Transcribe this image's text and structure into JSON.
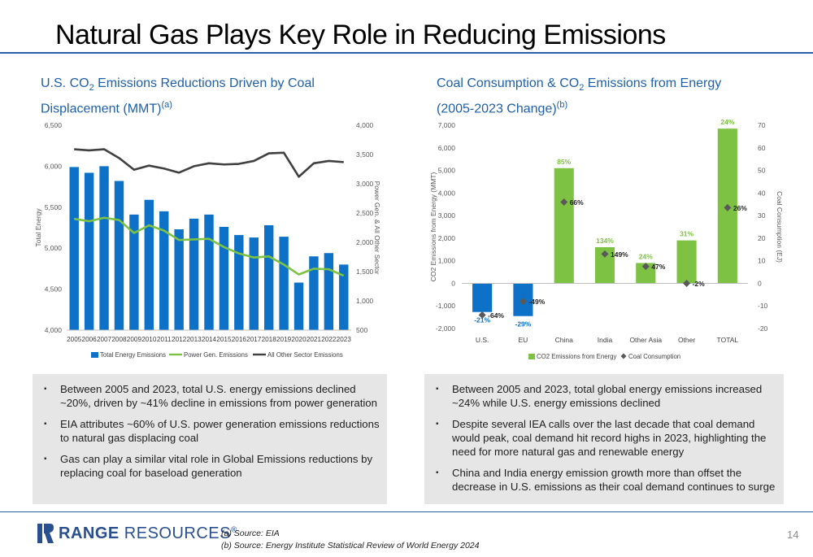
{
  "page": {
    "title": "Natural Gas Plays Key Role in Reducing Emissions",
    "page_number": "14"
  },
  "left_chart_heading": {
    "line1_a": "U.S. CO",
    "line1_sub": "2",
    "line1_b": " Emissions Reductions Driven by Coal",
    "line2": "Displacement (MMT)",
    "line2_sup": "(a)"
  },
  "right_chart_heading": {
    "line1_a": "Coal Consumption & CO",
    "line1_sub": "2",
    "line1_b": " Emissions from Energy",
    "line2": "(2005-2023 Change)",
    "line2_sup": "(b)"
  },
  "colors": {
    "brand_blue": "#1f5fa8",
    "bar_blue": "#0d72c7",
    "line_green": "#7dc242",
    "line_dark": "#404040",
    "bar_green": "#7dc242",
    "marker_gray": "#595959",
    "bullet_bg": "#e6e6e6"
  },
  "chart_data": [
    {
      "type": "bar",
      "x": [
        "2005",
        "2006",
        "2007",
        "2008",
        "2009",
        "2010",
        "2011",
        "2012",
        "2013",
        "2014",
        "2015",
        "2016",
        "2017",
        "2018",
        "2019",
        "2020",
        "2021",
        "2022",
        "2023"
      ],
      "ylabel": "Total Energy",
      "ylim": [
        4000,
        6500
      ],
      "yticks": [
        "4,000",
        "4,500",
        "5,000",
        "5,500",
        "6,000",
        "6,500"
      ],
      "y2label": "Power Gen. & All Other Sector",
      "y2lim": [
        500,
        4000
      ],
      "y2ticks": [
        "500",
        "1,000",
        "1,500",
        "2,000",
        "2,500",
        "3,000",
        "3,500",
        "4,000"
      ],
      "legend": "bottom",
      "series": [
        {
          "name": "Total Energy Emissions",
          "kind": "bar",
          "axis": "left",
          "values": [
            5990,
            5920,
            6000,
            5820,
            5410,
            5590,
            5450,
            5230,
            5360,
            5410,
            5260,
            5160,
            5130,
            5280,
            5140,
            4580,
            4900,
            4940,
            4800
          ]
        },
        {
          "name": "Power Gen. Emissions",
          "kind": "line",
          "axis": "right",
          "values": [
            2400,
            2360,
            2420,
            2380,
            2160,
            2290,
            2200,
            2040,
            2050,
            2060,
            1920,
            1810,
            1740,
            1760,
            1620,
            1450,
            1550,
            1540,
            1430
          ]
        },
        {
          "name": "All Other Sector Emissions",
          "kind": "line",
          "axis": "right",
          "values": [
            3590,
            3570,
            3590,
            3440,
            3240,
            3310,
            3260,
            3190,
            3300,
            3350,
            3330,
            3340,
            3390,
            3520,
            3530,
            3120,
            3350,
            3390,
            3370
          ]
        }
      ]
    },
    {
      "type": "bar",
      "categories": [
        "U.S.",
        "EU",
        "China",
        "India",
        "Other Asia",
        "Other",
        "TOTAL"
      ],
      "ylabel": "CO2 Emissions from Energy (MMT)",
      "ylim": [
        -2000,
        7000
      ],
      "yticks": [
        "-2,000",
        "-1,000",
        "0",
        "1,000",
        "2,000",
        "3,000",
        "4,000",
        "5,000",
        "6,000",
        "7,000"
      ],
      "y2label": "Coal Consumption (EJ)",
      "y2lim": [
        -20,
        70
      ],
      "y2ticks": [
        "-20",
        "-10",
        "0",
        "10",
        "20",
        "30",
        "40",
        "50",
        "60",
        "70"
      ],
      "legend": "bottom",
      "series": [
        {
          "name": "CO2 Emissions from Energy",
          "kind": "bar",
          "axis": "left",
          "values": [
            -1270,
            -1450,
            5100,
            1600,
            900,
            1900,
            6850
          ],
          "labels": [
            "-21%",
            "-29%",
            "85%",
            "134%",
            "24%",
            "31%",
            "24%"
          ]
        },
        {
          "name": "Coal Consumption",
          "kind": "marker",
          "axis": "right",
          "values": [
            -14,
            -8,
            36,
            13,
            7.5,
            0,
            33.5
          ],
          "labels": [
            "-64%",
            "-49%",
            "66%",
            "149%",
            "47%",
            "-2%",
            "26%"
          ]
        }
      ]
    }
  ],
  "left_bullets": [
    "Between 2005 and 2023, total U.S. energy emissions declined ~20%, driven by ~41% decline in emissions from power generation",
    "EIA attributes ~60% of U.S. power generation emissions reductions to natural gas displacing coal",
    "Gas can play a similar vital role in Global Emissions reductions by replacing coal for baseload generation"
  ],
  "right_bullets": [
    "Between 2005 and 2023, total global energy emissions increased ~24% while U.S. energy emissions declined",
    "Despite several IEA calls over the last decade that coal demand would peak, coal demand hit record highs in 2023, highlighting the need for more natural gas and renewable energy",
    "China and India energy emission growth more than offset the decrease in U.S. emissions as their coal demand continues to surge"
  ],
  "footer": {
    "logo_text_bold": "RANGE",
    "logo_text": " RESOURCES",
    "logo_mark": "®",
    "note_a": "(a)   Source: EIA",
    "note_b": "(b)   Source: Energy Institute Statistical Review of World Energy 2024"
  }
}
